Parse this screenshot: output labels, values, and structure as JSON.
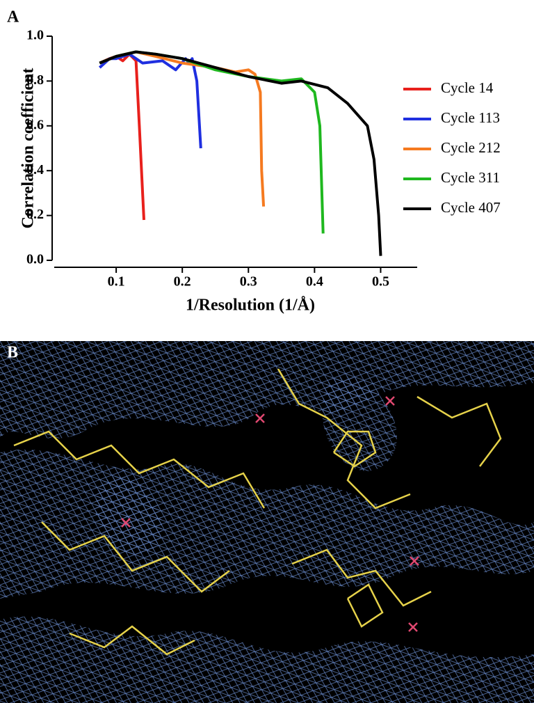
{
  "figure": {
    "panel_labels": [
      "A",
      "B"
    ]
  },
  "chart_data": {
    "type": "line",
    "xlabel": "1/Resolution (1/Å)",
    "ylabel": "Correlation coefficient",
    "xlim": [
      0.0,
      0.55
    ],
    "ylim": [
      0,
      1
    ],
    "xticks": [
      0.1,
      0.2,
      0.3,
      0.4,
      0.5
    ],
    "yticks": [
      {
        "value": 0,
        "label": "0.0"
      },
      0.2,
      0.4,
      0.6,
      0.8,
      {
        "value": 1,
        "label": "1.0"
      }
    ],
    "legend": "right",
    "series": [
      {
        "name": "Cycle 14",
        "color": "#e8201c",
        "x": [
          0.075,
          0.09,
          0.1,
          0.11,
          0.12,
          0.13,
          0.135,
          0.14,
          0.142
        ],
        "values": [
          0.88,
          0.9,
          0.91,
          0.89,
          0.92,
          0.89,
          0.6,
          0.3,
          0.18
        ]
      },
      {
        "name": "Cycle 113",
        "color": "#1f2fe0",
        "x": [
          0.075,
          0.09,
          0.1,
          0.12,
          0.13,
          0.14,
          0.17,
          0.19,
          0.205,
          0.21,
          0.215,
          0.222,
          0.228
        ],
        "values": [
          0.86,
          0.9,
          0.9,
          0.92,
          0.9,
          0.88,
          0.89,
          0.85,
          0.9,
          0.88,
          0.9,
          0.8,
          0.5
        ]
      },
      {
        "name": "Cycle 212",
        "color": "#f57a20",
        "x": [
          0.075,
          0.1,
          0.13,
          0.16,
          0.2,
          0.25,
          0.28,
          0.3,
          0.31,
          0.318,
          0.32,
          0.323
        ],
        "values": [
          0.88,
          0.91,
          0.93,
          0.91,
          0.88,
          0.86,
          0.84,
          0.85,
          0.83,
          0.75,
          0.4,
          0.24
        ]
      },
      {
        "name": "Cycle 311",
        "color": "#1fb81f",
        "x": [
          0.075,
          0.1,
          0.13,
          0.16,
          0.2,
          0.25,
          0.3,
          0.35,
          0.38,
          0.4,
          0.408,
          0.413
        ],
        "values": [
          0.88,
          0.91,
          0.93,
          0.92,
          0.9,
          0.85,
          0.82,
          0.8,
          0.81,
          0.75,
          0.6,
          0.12
        ]
      },
      {
        "name": "Cycle 407",
        "color": "#000000",
        "x": [
          0.075,
          0.1,
          0.13,
          0.16,
          0.2,
          0.25,
          0.3,
          0.35,
          0.38,
          0.42,
          0.45,
          0.48,
          0.49,
          0.497,
          0.5
        ],
        "values": [
          0.88,
          0.91,
          0.93,
          0.92,
          0.9,
          0.86,
          0.82,
          0.79,
          0.8,
          0.77,
          0.7,
          0.6,
          0.45,
          0.2,
          0.02
        ]
      }
    ]
  }
}
